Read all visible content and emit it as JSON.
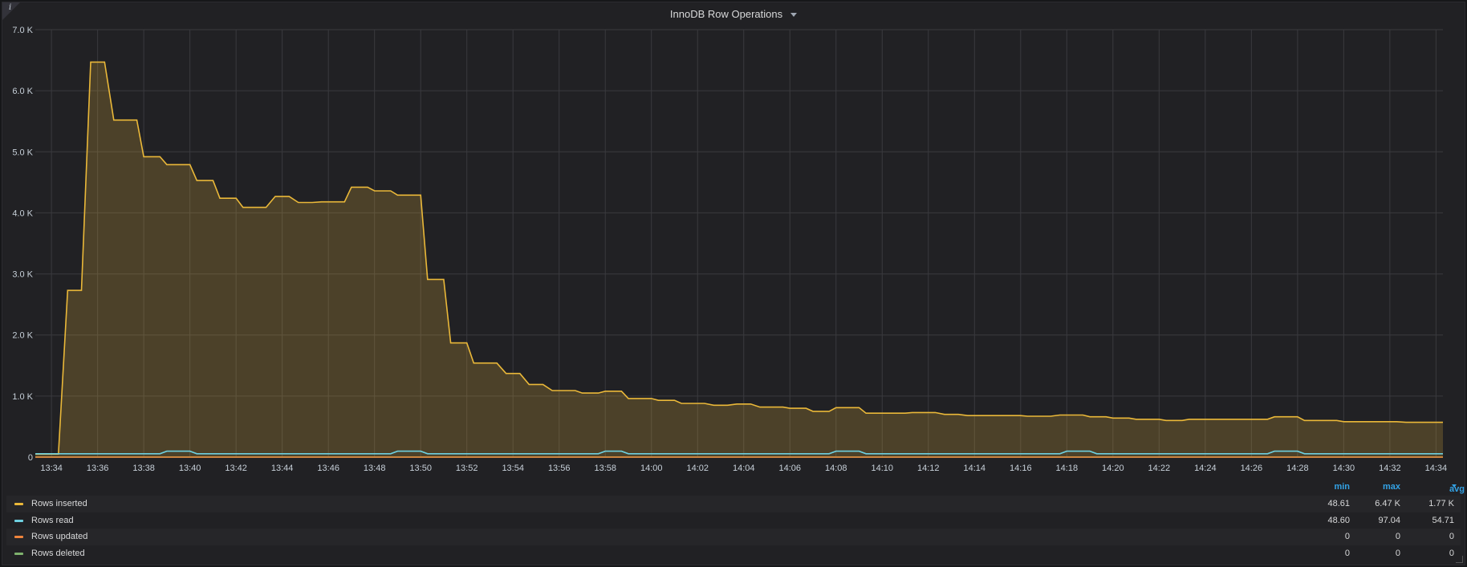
{
  "panel": {
    "title": "InnoDB Row Operations",
    "info_icon": "info-icon",
    "menu_icon": "chevron-down-icon"
  },
  "colors": {
    "background": "#212124",
    "grid": "#3a3a3e",
    "axis_text": "#c7d0d9",
    "rows_inserted": "#eab839",
    "rows_read": "#6ed0e0",
    "rows_updated": "#ef843c",
    "rows_deleted": "#7eb26d",
    "legend_header": "#33a2e5"
  },
  "legend": {
    "headers": {
      "min": "min",
      "max": "max",
      "avg": "avg"
    },
    "rows": [
      {
        "name": "Rows inserted",
        "min": "48.61",
        "max": "6.47 K",
        "avg": "1.77 K"
      },
      {
        "name": "Rows read",
        "min": "48.60",
        "max": "97.04",
        "avg": "54.71"
      },
      {
        "name": "Rows updated",
        "min": "0",
        "max": "0",
        "avg": "0"
      },
      {
        "name": "Rows deleted",
        "min": "0",
        "max": "0",
        "avg": "0"
      }
    ]
  },
  "chart_data": {
    "type": "area",
    "title": "InnoDB Row Operations",
    "x_unit": "minutes",
    "xlim": [
      "13:33.3",
      "14:34.3"
    ],
    "ylim": [
      0,
      7000
    ],
    "y_ticks": [
      "0",
      "1.0 K",
      "2.0 K",
      "3.0 K",
      "4.0 K",
      "5.0 K",
      "6.0 K",
      "7.0 K"
    ],
    "x_ticks": [
      "13:34",
      "13:36",
      "13:38",
      "13:40",
      "13:42",
      "13:44",
      "13:46",
      "13:48",
      "13:50",
      "13:52",
      "13:54",
      "13:56",
      "13:58",
      "14:00",
      "14:02",
      "14:04",
      "14:06",
      "14:08",
      "14:10",
      "14:12",
      "14:14",
      "14:16",
      "14:18",
      "14:20",
      "14:22",
      "14:24",
      "14:26",
      "14:28",
      "14:30",
      "14:32",
      "14:34"
    ],
    "grid": true,
    "legend_position": "bottom",
    "series": [
      {
        "name": "Rows inserted",
        "fill": true,
        "points": [
          [
            "13:33.3",
            50
          ],
          [
            "13:34.3",
            50
          ],
          [
            "13:34.7",
            2730
          ],
          [
            "13:35.3",
            2730
          ],
          [
            "13:35.7",
            6470
          ],
          [
            "13:36.3",
            6470
          ],
          [
            "13:36.7",
            5520
          ],
          [
            "13:37.7",
            5520
          ],
          [
            "13:38.0",
            4920
          ],
          [
            "13:38.7",
            4920
          ],
          [
            "13:39.0",
            4790
          ],
          [
            "13:40.0",
            4790
          ],
          [
            "13:40.3",
            4530
          ],
          [
            "13:41.0",
            4530
          ],
          [
            "13:41.3",
            4240
          ],
          [
            "13:42.0",
            4240
          ],
          [
            "13:42.3",
            4090
          ],
          [
            "13:43.3",
            4090
          ],
          [
            "13:43.7",
            4270
          ],
          [
            "13:44.3",
            4270
          ],
          [
            "13:44.7",
            4170
          ],
          [
            "13:45.3",
            4170
          ],
          [
            "13:45.7",
            4180
          ],
          [
            "13:46.7",
            4180
          ],
          [
            "13:47.0",
            4420
          ],
          [
            "13:47.7",
            4420
          ],
          [
            "13:48.0",
            4360
          ],
          [
            "13:48.7",
            4360
          ],
          [
            "13:49.0",
            4290
          ],
          [
            "13:50.0",
            4290
          ],
          [
            "13:50.3",
            2910
          ],
          [
            "13:51.0",
            2910
          ],
          [
            "13:51.3",
            1870
          ],
          [
            "13:52.0",
            1870
          ],
          [
            "13:52.3",
            1540
          ],
          [
            "13:53.3",
            1540
          ],
          [
            "13:53.7",
            1370
          ],
          [
            "13:54.3",
            1370
          ],
          [
            "13:54.7",
            1190
          ],
          [
            "13:55.3",
            1190
          ],
          [
            "13:55.7",
            1090
          ],
          [
            "13:56.7",
            1090
          ],
          [
            "13:57.0",
            1050
          ],
          [
            "13:57.7",
            1050
          ],
          [
            "13:58.0",
            1080
          ],
          [
            "13:58.7",
            1080
          ],
          [
            "13:59.0",
            960
          ],
          [
            "14:00.0",
            960
          ],
          [
            "14:00.3",
            930
          ],
          [
            "14:01.0",
            930
          ],
          [
            "14:01.3",
            880
          ],
          [
            "14:02.3",
            880
          ],
          [
            "14:02.7",
            850
          ],
          [
            "14:03.3",
            850
          ],
          [
            "14:03.7",
            870
          ],
          [
            "14:04.3",
            870
          ],
          [
            "14:04.7",
            820
          ],
          [
            "14:05.7",
            820
          ],
          [
            "14:06.0",
            800
          ],
          [
            "14:06.7",
            800
          ],
          [
            "14:07.0",
            750
          ],
          [
            "14:07.7",
            750
          ],
          [
            "14:08.0",
            810
          ],
          [
            "14:09.0",
            810
          ],
          [
            "14:09.3",
            720
          ],
          [
            "14:11.0",
            720
          ],
          [
            "14:11.3",
            730
          ],
          [
            "14:12.3",
            730
          ],
          [
            "14:12.7",
            700
          ],
          [
            "14:13.3",
            700
          ],
          [
            "14:13.7",
            680
          ],
          [
            "14:16.0",
            680
          ],
          [
            "14:16.3",
            670
          ],
          [
            "14:17.3",
            670
          ],
          [
            "14:17.7",
            690
          ],
          [
            "14:18.7",
            690
          ],
          [
            "14:19.0",
            660
          ],
          [
            "14:19.7",
            660
          ],
          [
            "14:20.0",
            640
          ],
          [
            "14:20.7",
            640
          ],
          [
            "14:21.0",
            620
          ],
          [
            "14:22.0",
            620
          ],
          [
            "14:22.3",
            600
          ],
          [
            "14:23.0",
            600
          ],
          [
            "14:23.3",
            620
          ],
          [
            "14:26.7",
            620
          ],
          [
            "14:27.0",
            660
          ],
          [
            "14:28.0",
            660
          ],
          [
            "14:28.3",
            600
          ],
          [
            "14:29.7",
            600
          ],
          [
            "14:30.0",
            580
          ],
          [
            "14:32.3",
            580
          ],
          [
            "14:32.7",
            570
          ],
          [
            "14:34.3",
            570
          ]
        ]
      },
      {
        "name": "Rows read",
        "fill": false,
        "points": [
          [
            "13:33.3",
            55
          ],
          [
            "13:38.7",
            55
          ],
          [
            "13:39.0",
            97
          ],
          [
            "13:40.0",
            97
          ],
          [
            "13:40.3",
            55
          ],
          [
            "13:48.7",
            55
          ],
          [
            "13:49.0",
            97
          ],
          [
            "13:50.0",
            97
          ],
          [
            "13:50.3",
            55
          ],
          [
            "13:57.7",
            55
          ],
          [
            "13:58.0",
            97
          ],
          [
            "13:58.7",
            97
          ],
          [
            "13:59.0",
            55
          ],
          [
            "14:07.7",
            55
          ],
          [
            "14:08.0",
            97
          ],
          [
            "14:09.0",
            97
          ],
          [
            "14:09.3",
            55
          ],
          [
            "14:17.7",
            55
          ],
          [
            "14:18.0",
            97
          ],
          [
            "14:19.0",
            97
          ],
          [
            "14:19.3",
            55
          ],
          [
            "14:26.7",
            55
          ],
          [
            "14:27.0",
            97
          ],
          [
            "14:28.0",
            97
          ],
          [
            "14:28.3",
            55
          ],
          [
            "14:34.3",
            55
          ]
        ]
      },
      {
        "name": "Rows updated",
        "fill": false,
        "points": [
          [
            "13:33.3",
            0
          ],
          [
            "14:34.3",
            0
          ]
        ]
      },
      {
        "name": "Rows deleted",
        "fill": false,
        "points": [
          [
            "13:33.3",
            0
          ],
          [
            "14:34.3",
            0
          ]
        ]
      }
    ]
  }
}
